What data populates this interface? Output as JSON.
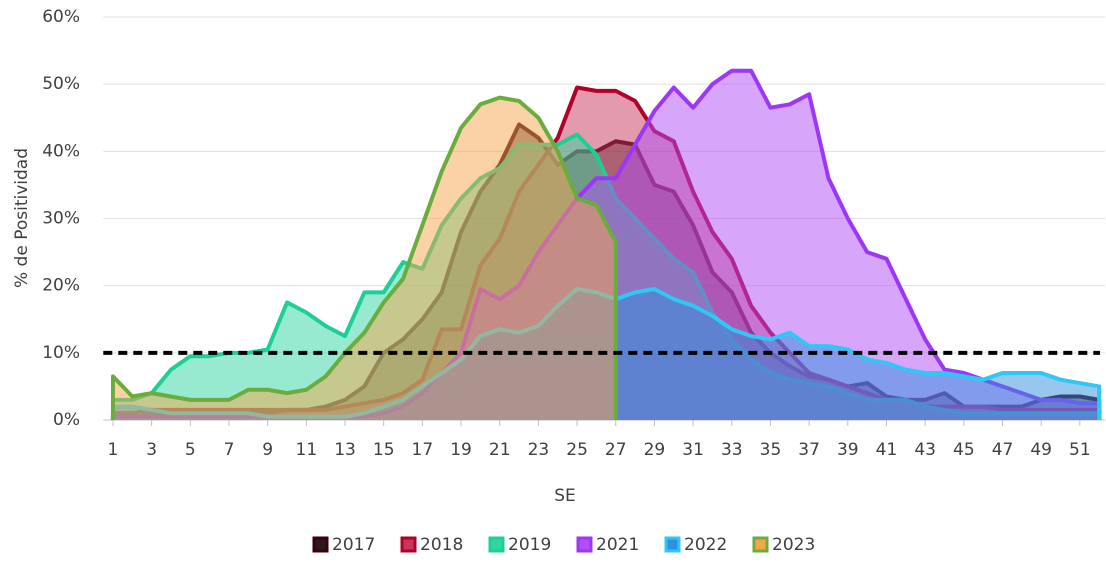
{
  "chart_data": {
    "type": "area",
    "x_label": "SE",
    "y_label": "% de Positividad",
    "x": [
      1,
      2,
      3,
      4,
      5,
      6,
      7,
      8,
      9,
      10,
      11,
      12,
      13,
      14,
      15,
      16,
      17,
      18,
      19,
      20,
      21,
      22,
      23,
      24,
      25,
      26,
      27,
      28,
      29,
      30,
      31,
      32,
      33,
      34,
      35,
      36,
      37,
      38,
      39,
      40,
      41,
      42,
      43,
      44,
      45,
      46,
      47,
      48,
      49,
      50,
      51,
      52
    ],
    "xlim": [
      0.5,
      52.3
    ],
    "xticks": [
      1,
      3,
      5,
      7,
      9,
      11,
      13,
      15,
      17,
      19,
      21,
      23,
      25,
      27,
      29,
      31,
      33,
      35,
      37,
      39,
      41,
      43,
      45,
      47,
      49,
      51
    ],
    "ylim": [
      0,
      60
    ],
    "yticks": [
      {
        "value": 0,
        "label": "0%"
      },
      {
        "value": 10,
        "label": "10%"
      },
      {
        "value": 20,
        "label": "20%"
      },
      {
        "value": 30,
        "label": "30%"
      },
      {
        "value": 40,
        "label": "40%"
      },
      {
        "value": 50,
        "label": "50%"
      },
      {
        "value": 60,
        "label": "60%"
      }
    ],
    "grid": true,
    "threshold": 10,
    "legend": "bottom",
    "series": [
      {
        "name": "2017",
        "color": "#3a0010",
        "fill": "#2a1a1a",
        "values": [
          1,
          1,
          1,
          1,
          1,
          1,
          1,
          1,
          1,
          1.5,
          1.5,
          2,
          3,
          5,
          10,
          12,
          15,
          19,
          28,
          34,
          38,
          44,
          42,
          38,
          40,
          40,
          41.5,
          41,
          35,
          34,
          29,
          22,
          19,
          13,
          10,
          8,
          6.5,
          6,
          5,
          5.5,
          3.5,
          3,
          3,
          4,
          2,
          2,
          2,
          2,
          3,
          3.5,
          3.5,
          3
        ]
      },
      {
        "name": "2018",
        "color": "#b0002b",
        "fill": "#c8365a",
        "values": [
          1,
          1,
          1.5,
          1.5,
          1.5,
          1.5,
          1.5,
          1.5,
          1.5,
          1.5,
          1.5,
          1.5,
          2,
          2.5,
          3,
          4,
          6,
          13.5,
          13.5,
          23,
          27,
          34,
          38,
          42,
          49.5,
          49,
          49,
          47.5,
          43,
          41.5,
          34,
          28,
          24,
          17,
          13,
          10,
          7,
          6,
          5,
          4,
          3,
          3,
          2,
          2,
          2,
          2,
          1.5,
          1.5,
          1.5,
          1.5,
          1.5,
          1.5
        ]
      },
      {
        "name": "2019",
        "color": "#1ccf95",
        "fill": "#2fd6a0",
        "values": [
          3,
          3,
          4,
          7.5,
          9.5,
          9.5,
          10,
          10,
          10.5,
          17.5,
          16,
          14,
          12.5,
          19,
          19,
          23.5,
          22.5,
          29,
          33,
          36,
          37.5,
          41,
          41,
          41,
          42.5,
          39.5,
          33,
          30,
          27,
          24,
          22,
          16,
          12,
          9,
          7,
          6,
          5.5,
          5,
          4,
          3,
          3,
          3,
          2,
          1.5,
          1,
          1,
          1,
          1,
          1,
          1,
          1,
          1
        ]
      },
      {
        "name": "2021",
        "color": "#9d36f5",
        "fill": "#b04ef7",
        "values": [
          0.5,
          0.5,
          0.5,
          0.5,
          0.5,
          0.5,
          0.5,
          0.5,
          0.5,
          0.5,
          0.5,
          0.5,
          0.5,
          0.5,
          1,
          2,
          4,
          7,
          10,
          19.5,
          18,
          20,
          25,
          29,
          33,
          36,
          36,
          41,
          46,
          49.5,
          46.5,
          50,
          52,
          52,
          46.5,
          47,
          48.5,
          36,
          30,
          25,
          24,
          18,
          12,
          7.5,
          7,
          6,
          5,
          4,
          3,
          3,
          2.5,
          2.5
        ]
      },
      {
        "name": "2022",
        "color": "#2fc8f5",
        "fill": "#2f8fe0",
        "values": [
          2,
          2,
          1.5,
          1,
          1,
          1,
          1,
          1,
          0.5,
          0.5,
          0.5,
          0.5,
          0.5,
          1,
          2,
          3,
          5,
          7,
          9,
          12.5,
          13.5,
          13,
          14,
          17,
          19.5,
          19,
          18,
          19,
          19.5,
          18,
          17,
          15.5,
          13.5,
          12.5,
          12,
          13,
          11,
          11,
          10.5,
          9,
          8.5,
          7.5,
          7,
          7,
          6.5,
          6,
          7,
          7,
          7,
          6,
          5.5,
          5
        ]
      },
      {
        "name": "2023",
        "color": "#6aad3c",
        "fill": "#f7a64c",
        "values": [
          6.5,
          3.5,
          4,
          3.5,
          3,
          3,
          3,
          4.5,
          4.5,
          4,
          4.5,
          6.5,
          10,
          13,
          17.5,
          21,
          29,
          37,
          43.5,
          47,
          48,
          47.5,
          45,
          40,
          33,
          32,
          26.5,
          null,
          null,
          null,
          null,
          null,
          null,
          null,
          null,
          null,
          null,
          null,
          null,
          null,
          null,
          null,
          null,
          null,
          null,
          null,
          null,
          null,
          null,
          null,
          null,
          null
        ]
      }
    ]
  }
}
